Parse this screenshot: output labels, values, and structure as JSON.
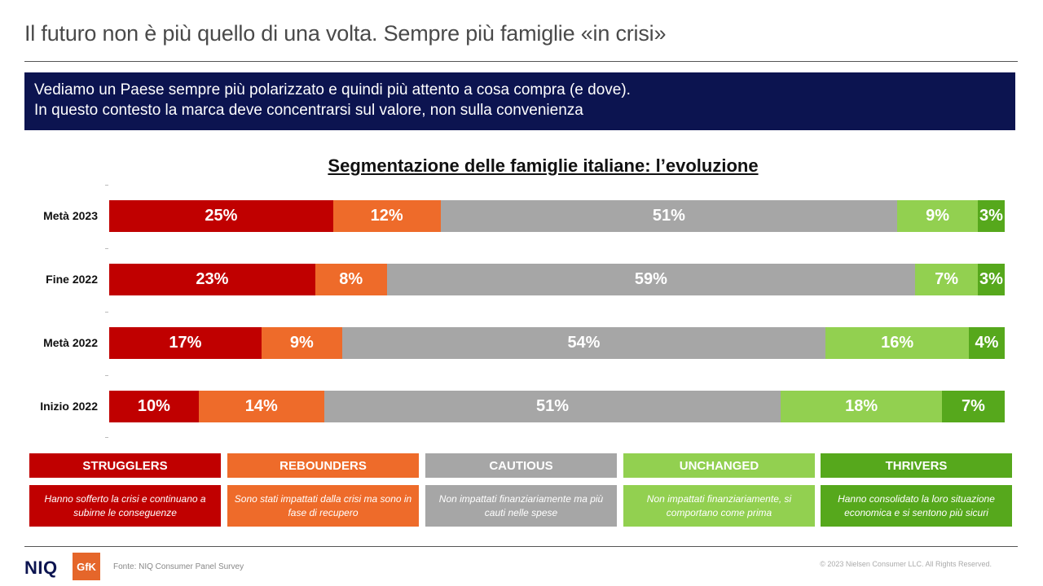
{
  "header": {
    "title": "Il futuro non è più quello di una volta. Sempre più famiglie «in crisi»"
  },
  "banner": {
    "line1": "Vediamo un Paese sempre più polarizzato  e quindi più attento a cosa compra (e dove).",
    "line2": "In questo contesto la marca deve concentrarsi sul valore, non sulla convenienza"
  },
  "chart_data": {
    "type": "bar",
    "orientation": "horizontal",
    "stacked": true,
    "title": "Segmentazione delle famiglie italiane: l’evoluzione",
    "categories": [
      "Metà 2023",
      "Fine 2022",
      "Metà 2022",
      "Inizio 2022"
    ],
    "series": [
      {
        "name": "STRUGGLERS",
        "color": "#c00000",
        "values": [
          25,
          23,
          17,
          10
        ],
        "labels": [
          "25%",
          "23%",
          "17%",
          "10%"
        ]
      },
      {
        "name": "REBOUNDERS",
        "color": "#ee6b2a",
        "values": [
          12,
          8,
          9,
          14
        ],
        "labels": [
          "12%",
          "8%",
          "9%",
          "14%"
        ]
      },
      {
        "name": "CAUTIOUS",
        "color": "#a6a6a6",
        "values": [
          51,
          59,
          54,
          51
        ],
        "labels": [
          "51%",
          "59%",
          "54%",
          "51%"
        ]
      },
      {
        "name": "UNCHANGED",
        "color": "#92d050",
        "values": [
          9,
          7,
          16,
          18
        ],
        "labels": [
          "9%",
          "7%",
          "16%",
          "18%"
        ]
      },
      {
        "name": "THRIVERS",
        "color": "#56a81c",
        "values": [
          3,
          3,
          4,
          7
        ],
        "labels": [
          "3%",
          "3%",
          "4%",
          "7%"
        ]
      }
    ],
    "legend_position": "bottom"
  },
  "legend": [
    {
      "label": "STRUGGLERS",
      "description": "Hanno  sofferto la crisi e continuano a subirne le conseguenze",
      "color": "#c00000"
    },
    {
      "label": "REBOUNDERS",
      "description": "Sono stati impattati dalla crisi ma sono in fase di recupero",
      "color": "#ee6b2a"
    },
    {
      "label": "CAUTIOUS",
      "description": "Non  impattati finanziariamente  ma più cauti nelle spese",
      "color": "#a6a6a6"
    },
    {
      "label": "UNCHANGED",
      "description": "Non  impattati finanziariamente,  si comportano  come prima",
      "color": "#92d050"
    },
    {
      "label": "THRIVERS",
      "description": "Hanno  consolidato la loro situazione economica e si sentono più sicuri",
      "color": "#56a81c"
    }
  ],
  "footer": {
    "logo_niq": "NIQ",
    "logo_gfk": "GfK",
    "source": "Fonte: NIQ  Consumer Panel Survey",
    "copyright": "© 2023  Nielsen Consumer LLC. All Rights Reserved."
  }
}
